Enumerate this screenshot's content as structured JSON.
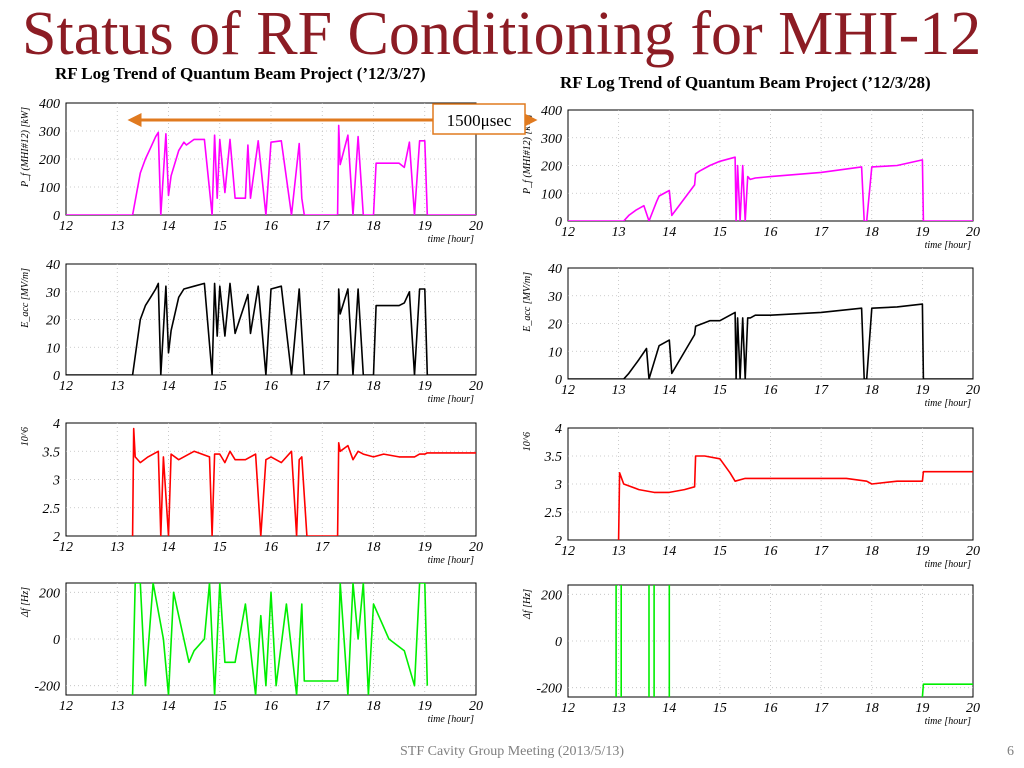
{
  "slide": {
    "title": "Status of RF Conditioning for MHI-12",
    "subtitle_left": "RF Log Trend of Quantum Beam Project (’12/3/27)",
    "subtitle_right": "RF Log Trend of Quantum Beam Project (’12/3/28)",
    "footer": "STF Cavity Group Meeting (2013/5/13)",
    "page_number": "6"
  },
  "annotation": {
    "label": "1500μsec",
    "color": "#e07a1f",
    "x_range": [
      13.2,
      21.2
    ]
  },
  "colors": {
    "power": "#ff00ff",
    "field": "#000000",
    "q0": "#ff0000",
    "detune": "#00ee00",
    "title": "#8c1c24"
  },
  "chart_data": [
    {
      "type": "line",
      "panel": "left-power",
      "ylabel": "P_f (MHI#12) [kW]",
      "xlabel": "time [hour]",
      "xlim": [
        12,
        20
      ],
      "ylim": [
        0,
        400
      ],
      "xticks": [
        "12",
        "13",
        "14",
        "15",
        "16",
        "17",
        "18",
        "19",
        "20"
      ],
      "yticks": [
        "0",
        "100",
        "200",
        "300",
        "400"
      ],
      "grid": true,
      "series": [
        {
          "color": "#ff00ff",
          "x": [
            12,
            13.3,
            13.45,
            13.55,
            13.65,
            13.75,
            13.8,
            13.85,
            13.95,
            14.0,
            14.05,
            14.2,
            14.3,
            14.35,
            14.5,
            14.7,
            14.85,
            14.9,
            14.95,
            15.0,
            15.1,
            15.2,
            15.3,
            15.5,
            15.55,
            15.6,
            15.75,
            15.9,
            16.0,
            16.2,
            16.4,
            16.55,
            16.6,
            16.65,
            16.7,
            17.0,
            17.3,
            17.32,
            17.35,
            17.5,
            17.6,
            17.7,
            17.8,
            17.9,
            18.0,
            18.05,
            18.1,
            18.5,
            18.6,
            18.7,
            18.8,
            18.9,
            19.0,
            19.05,
            20
          ],
          "y": [
            0,
            0,
            150,
            200,
            240,
            280,
            295,
            0,
            290,
            70,
            140,
            230,
            260,
            250,
            270,
            270,
            0,
            285,
            60,
            270,
            80,
            270,
            60,
            60,
            250,
            60,
            265,
            0,
            260,
            265,
            0,
            255,
            60,
            0,
            0,
            0,
            0,
            320,
            180,
            285,
            0,
            280,
            0,
            0,
            0,
            185,
            185,
            185,
            170,
            260,
            0,
            265,
            265,
            0,
            0
          ]
        }
      ]
    },
    {
      "type": "line",
      "panel": "left-field",
      "ylabel": "E_acc [MV/m]",
      "xlabel": "time [hour]",
      "xlim": [
        12,
        20
      ],
      "ylim": [
        0,
        40
      ],
      "xticks": [
        "12",
        "13",
        "14",
        "15",
        "16",
        "17",
        "18",
        "19",
        "20"
      ],
      "yticks": [
        "0",
        "10",
        "20",
        "30",
        "40"
      ],
      "grid": true,
      "series": [
        {
          "color": "#000000",
          "x": [
            12,
            13.3,
            13.45,
            13.55,
            13.65,
            13.75,
            13.8,
            13.85,
            13.95,
            14.0,
            14.05,
            14.2,
            14.3,
            14.5,
            14.7,
            14.85,
            14.9,
            14.95,
            15.0,
            15.1,
            15.2,
            15.3,
            15.55,
            15.6,
            15.75,
            15.9,
            16.0,
            16.2,
            16.4,
            16.55,
            16.6,
            16.65,
            16.7,
            17.0,
            17.3,
            17.32,
            17.35,
            17.5,
            17.6,
            17.7,
            17.8,
            17.9,
            18.0,
            18.05,
            18.1,
            18.5,
            18.6,
            18.7,
            18.8,
            18.9,
            19.0,
            19.05,
            20
          ],
          "y": [
            0,
            0,
            20,
            25,
            28,
            31,
            33,
            0,
            32,
            8,
            16,
            28,
            31,
            32,
            33,
            0,
            33,
            14,
            32,
            14,
            33,
            15,
            29,
            15,
            32,
            0,
            31,
            32,
            0,
            31,
            15,
            0,
            0,
            0,
            0,
            31,
            22,
            31,
            0,
            31,
            0,
            0,
            0,
            25,
            25,
            25,
            26,
            30,
            0,
            31,
            31,
            0,
            0
          ]
        }
      ]
    },
    {
      "type": "line",
      "panel": "left-q0",
      "ylabel": "10^6",
      "xlabel": "time [hour]",
      "xlim": [
        12,
        20
      ],
      "ylim": [
        2,
        4
      ],
      "xticks": [
        "12",
        "13",
        "14",
        "15",
        "16",
        "17",
        "18",
        "19",
        "20"
      ],
      "yticks": [
        "2",
        "2.5",
        "3",
        "3.5",
        "4"
      ],
      "grid": true,
      "series": [
        {
          "color": "#ff0000",
          "x": [
            13.3,
            13.32,
            13.35,
            13.45,
            13.6,
            13.8,
            13.85,
            13.9,
            14.0,
            14.05,
            14.2,
            14.5,
            14.8,
            14.85,
            14.9,
            15.0,
            15.1,
            15.2,
            15.3,
            15.5,
            15.7,
            15.8,
            15.9,
            16.0,
            16.2,
            16.4,
            16.5,
            16.55,
            16.6,
            16.7,
            17.3,
            17.32,
            17.35,
            17.5,
            17.6,
            17.7,
            17.8,
            18.0,
            18.2,
            18.5,
            18.8,
            18.9,
            19.0,
            19.05,
            20
          ],
          "y": [
            2.0,
            3.9,
            3.4,
            3.3,
            3.4,
            3.5,
            2.0,
            3.4,
            2.0,
            3.45,
            3.35,
            3.5,
            3.4,
            2.0,
            3.45,
            3.45,
            3.3,
            3.5,
            3.35,
            3.35,
            3.45,
            2.0,
            3.35,
            3.4,
            3.3,
            3.5,
            2.0,
            3.35,
            3.4,
            2.0,
            2.0,
            3.65,
            3.5,
            3.6,
            3.35,
            3.5,
            3.45,
            3.4,
            3.45,
            3.4,
            3.4,
            3.45,
            3.45,
            3.47,
            3.47
          ]
        }
      ]
    },
    {
      "type": "line",
      "panel": "left-detune",
      "ylabel": "Δf [Hz]",
      "xlabel": "time [hour]",
      "xlim": [
        12,
        20
      ],
      "ylim": [
        -240,
        240
      ],
      "xticks": [
        "12",
        "13",
        "14",
        "15",
        "16",
        "17",
        "18",
        "19",
        "20"
      ],
      "yticks": [
        "-200",
        "0",
        "200"
      ],
      "grid": true,
      "series": [
        {
          "color": "#00ee00",
          "x": [
            13.3,
            13.35,
            13.45,
            13.55,
            13.7,
            13.9,
            14.0,
            14.1,
            14.2,
            14.4,
            14.5,
            14.7,
            14.8,
            14.9,
            15.0,
            15.1,
            15.3,
            15.5,
            15.7,
            15.8,
            15.9,
            16.0,
            16.1,
            16.3,
            16.5,
            16.6,
            16.65,
            17.3,
            17.35,
            17.5,
            17.6,
            17.7,
            17.8,
            17.9,
            18.0,
            18.3,
            18.6,
            18.8,
            18.9,
            19.0,
            19.05
          ],
          "y": [
            -240,
            240,
            240,
            -200,
            240,
            0,
            -240,
            200,
            100,
            -100,
            -50,
            0,
            240,
            -240,
            240,
            -100,
            -100,
            150,
            -240,
            100,
            -200,
            200,
            -200,
            150,
            -240,
            150,
            -180,
            -180,
            240,
            -240,
            240,
            0,
            240,
            -240,
            150,
            0,
            -50,
            -200,
            240,
            240,
            -200
          ]
        }
      ]
    },
    {
      "type": "line",
      "panel": "right-power",
      "ylabel": "P_f (MHI#12) [kW]",
      "xlabel": "time [hour]",
      "xlim": [
        12,
        20
      ],
      "ylim": [
        0,
        400
      ],
      "xticks": [
        "12",
        "13",
        "14",
        "15",
        "16",
        "17",
        "18",
        "19",
        "20"
      ],
      "yticks": [
        "0",
        "100",
        "200",
        "300",
        "400"
      ],
      "grid": true,
      "series": [
        {
          "color": "#ff00ff",
          "x": [
            12,
            13.1,
            13.2,
            13.35,
            13.5,
            13.6,
            13.75,
            13.8,
            14.0,
            14.05,
            14.5,
            14.52,
            14.6,
            14.8,
            15.0,
            15.3,
            15.32,
            15.35,
            15.4,
            15.45,
            15.5,
            15.55,
            15.6,
            15.7,
            16.0,
            17.0,
            17.8,
            17.85,
            17.9,
            18.0,
            18.5,
            19.0,
            19.02,
            20
          ],
          "y": [
            0,
            0,
            20,
            40,
            55,
            0,
            70,
            90,
            110,
            20,
            130,
            170,
            180,
            200,
            215,
            230,
            0,
            200,
            0,
            200,
            0,
            160,
            150,
            155,
            160,
            175,
            195,
            0,
            0,
            195,
            200,
            220,
            0,
            0
          ]
        }
      ]
    },
    {
      "type": "line",
      "panel": "right-field",
      "ylabel": "E_acc [MV/m]",
      "xlabel": "time [hour]",
      "xlim": [
        12,
        20
      ],
      "ylim": [
        0,
        40
      ],
      "xticks": [
        "12",
        "13",
        "14",
        "15",
        "16",
        "17",
        "18",
        "19",
        "20"
      ],
      "yticks": [
        "0",
        "10",
        "20",
        "30",
        "40"
      ],
      "grid": true,
      "series": [
        {
          "color": "#000000",
          "x": [
            12,
            13.1,
            13.2,
            13.4,
            13.55,
            13.6,
            13.8,
            14.0,
            14.05,
            14.5,
            14.52,
            14.8,
            15.0,
            15.3,
            15.32,
            15.35,
            15.4,
            15.45,
            15.5,
            15.55,
            15.6,
            15.7,
            16.0,
            17.0,
            17.8,
            17.85,
            17.9,
            18.0,
            18.5,
            19.0,
            19.02,
            20
          ],
          "y": [
            0,
            0,
            2,
            7,
            11,
            0,
            12,
            14,
            2,
            16,
            19,
            21,
            21,
            24,
            0,
            22,
            0,
            22,
            0,
            22,
            22,
            23,
            23,
            24,
            25.5,
            0,
            0,
            25.5,
            26,
            27,
            0,
            0
          ]
        }
      ]
    },
    {
      "type": "line",
      "panel": "right-q0",
      "ylabel": "10^6",
      "xlabel": "time [hour]",
      "xlim": [
        12,
        20
      ],
      "ylim": [
        2,
        4
      ],
      "xticks": [
        "12",
        "13",
        "14",
        "15",
        "16",
        "17",
        "18",
        "19",
        "20"
      ],
      "yticks": [
        "2",
        "2.5",
        "3",
        "3.5",
        "4"
      ],
      "grid": true,
      "series": [
        {
          "color": "#ff0000",
          "x": [
            13.0,
            13.02,
            13.1,
            13.4,
            13.7,
            14.0,
            14.3,
            14.5,
            14.52,
            14.7,
            15.0,
            15.2,
            15.3,
            15.5,
            15.8,
            16.0,
            16.5,
            17.0,
            17.5,
            17.9,
            18.0,
            18.5,
            19.0,
            19.02,
            20
          ],
          "y": [
            2.0,
            3.2,
            3.0,
            2.9,
            2.85,
            2.85,
            2.9,
            2.95,
            3.5,
            3.5,
            3.45,
            3.2,
            3.05,
            3.1,
            3.1,
            3.1,
            3.1,
            3.1,
            3.1,
            3.05,
            3.0,
            3.05,
            3.05,
            3.22,
            3.22
          ]
        }
      ]
    },
    {
      "type": "line",
      "panel": "right-detune",
      "ylabel": "Δf [Hz]",
      "xlabel": "time [hour]",
      "xlim": [
        12,
        20
      ],
      "ylim": [
        -240,
        240
      ],
      "xticks": [
        "12",
        "13",
        "14",
        "15",
        "16",
        "17",
        "18",
        "19",
        "20"
      ],
      "yticks": [
        "-200",
        "0",
        "200"
      ],
      "grid": true,
      "series": [
        {
          "color": "#00ee00",
          "x": [
            12.95,
            12.95
          ],
          "y": [
            -240,
            240
          ]
        },
        {
          "color": "#00ee00",
          "x": [
            13.05,
            13.05
          ],
          "y": [
            -240,
            240
          ]
        },
        {
          "color": "#00ee00",
          "x": [
            13.6,
            13.6
          ],
          "y": [
            -240,
            240
          ]
        },
        {
          "color": "#00ee00",
          "x": [
            13.7,
            13.7
          ],
          "y": [
            -240,
            240
          ]
        },
        {
          "color": "#00ee00",
          "x": [
            14.0,
            14.0
          ],
          "y": [
            -240,
            240
          ]
        },
        {
          "color": "#00ee00",
          "x": [
            19.0,
            19.02,
            20
          ],
          "y": [
            -240,
            -185,
            -185
          ]
        }
      ]
    }
  ]
}
